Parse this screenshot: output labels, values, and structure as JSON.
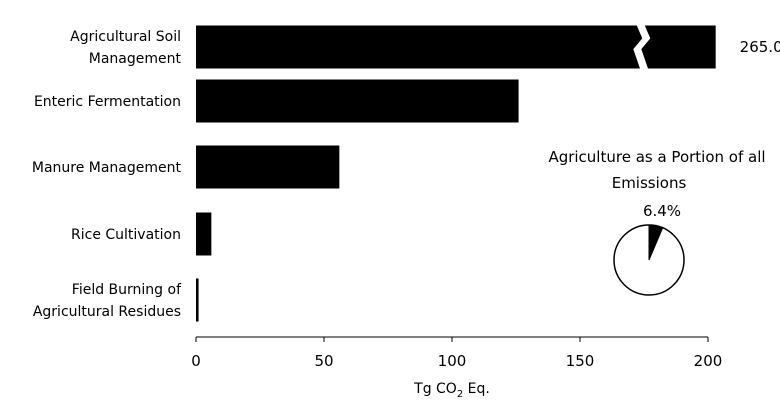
{
  "chart_data": {
    "type": "bar",
    "orientation": "horizontal",
    "categories": [
      "Agricultural Soil Management",
      "Enteric Fermentation",
      "Manure Management",
      "Rice Cultivation",
      "Field Burning of Agricultural Residues"
    ],
    "category_lines": [
      [
        "Agricultural Soil",
        "Management"
      ],
      [
        "Enteric Fermentation"
      ],
      [
        "Manure Management"
      ],
      [
        "Rice Cultivation"
      ],
      [
        "Field Burning of",
        "Agricultural Residues"
      ]
    ],
    "values": [
      265.0,
      126,
      56,
      6,
      1
    ],
    "axis_break": true,
    "value_labels": [
      "265.0",
      "",
      "",
      "",
      ""
    ],
    "xlabel": "Tg CO",
    "xlabel_sub": "2",
    "xlabel_suffix": " Eq.",
    "xlim": [
      0,
      200
    ],
    "xticks": [
      "0",
      "50",
      "100",
      "150",
      "200"
    ],
    "bar_color": "#000000",
    "grid": false,
    "inset": {
      "type": "pie",
      "title_line1": "Agriculture as a Portion of all",
      "title_line2": "Emissions",
      "slice_label": "6.4%",
      "slice_value": 6.4,
      "slice_color": "#000000",
      "rest_color": "#ffffff"
    }
  }
}
